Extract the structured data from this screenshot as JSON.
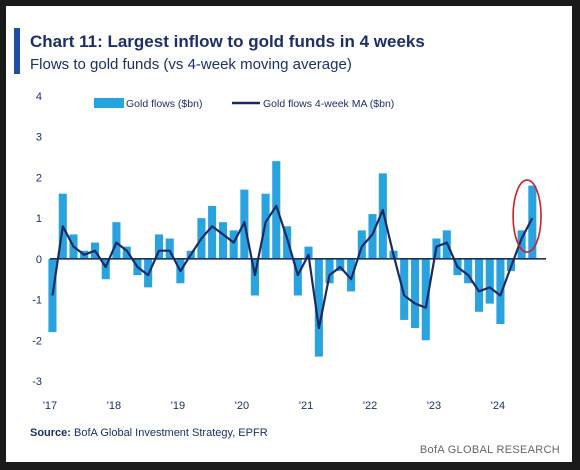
{
  "header": {
    "title": "Chart 11: Largest inflow to gold funds in 4 weeks",
    "subtitle": "Flows to gold funds (vs 4-week moving average)"
  },
  "footer": {
    "source_label": "Source:",
    "source_text": "BofA Global Investment Strategy, EPFR",
    "brand": "BofA GLOBAL RESEARCH"
  },
  "colors": {
    "bars": "#29a3e0",
    "ma_line": "#1b2a63",
    "zero_line": "#1c2f6b",
    "highlight": "#d11e2b",
    "text": "#1c2f6b"
  },
  "chart_data": {
    "type": "bar",
    "ylim": [
      -3,
      4
    ],
    "yticks": [
      "-3",
      "-2",
      "-1",
      "0",
      "1",
      "2",
      "3",
      "4"
    ],
    "xticks": [
      "'17",
      "'18",
      "'19",
      "'20",
      "'21",
      "'22",
      "'23",
      "'24"
    ],
    "legend": [
      "Gold flows ($bn)",
      "Gold flows 4-week MA ($bn)"
    ],
    "legend_position": "top",
    "grid": false,
    "highlight": {
      "shape": "ellipse",
      "region": "mid-2024",
      "label": ""
    },
    "series": [
      {
        "name": "Gold flows ($bn)",
        "type": "bar",
        "x": [
          "2017-01",
          "2017-03",
          "2017-05",
          "2017-07",
          "2017-09",
          "2017-11",
          "2018-01",
          "2018-03",
          "2018-05",
          "2018-07",
          "2018-09",
          "2018-11",
          "2019-01",
          "2019-03",
          "2019-05",
          "2019-07",
          "2019-09",
          "2019-11",
          "2020-01",
          "2020-03",
          "2020-05",
          "2020-07",
          "2020-09",
          "2020-11",
          "2021-01",
          "2021-03",
          "2021-05",
          "2021-07",
          "2021-09",
          "2021-11",
          "2022-01",
          "2022-03",
          "2022-05",
          "2022-07",
          "2022-09",
          "2022-11",
          "2023-01",
          "2023-03",
          "2023-05",
          "2023-07",
          "2023-09",
          "2023-11",
          "2024-01",
          "2024-03",
          "2024-05",
          "2024-07"
        ],
        "values": [
          -1.8,
          1.6,
          0.6,
          0.2,
          0.4,
          -0.5,
          0.9,
          0.3,
          -0.4,
          -0.7,
          0.6,
          0.5,
          -0.6,
          0.2,
          1.0,
          1.3,
          0.9,
          0.7,
          1.7,
          -0.9,
          1.6,
          2.4,
          0.8,
          -0.9,
          0.3,
          -2.4,
          -0.6,
          -0.3,
          -0.8,
          0.7,
          1.1,
          2.1,
          0.2,
          -1.5,
          -1.7,
          -2.0,
          0.5,
          0.7,
          -0.4,
          -0.6,
          -1.3,
          -1.1,
          -1.6,
          -0.3,
          0.7,
          1.8
        ]
      },
      {
        "name": "Gold flows 4-week MA ($bn)",
        "type": "line",
        "x": [
          "2017-01",
          "2017-03",
          "2017-05",
          "2017-07",
          "2017-09",
          "2017-11",
          "2018-01",
          "2018-03",
          "2018-05",
          "2018-07",
          "2018-09",
          "2018-11",
          "2019-01",
          "2019-03",
          "2019-05",
          "2019-07",
          "2019-09",
          "2019-11",
          "2020-01",
          "2020-03",
          "2020-05",
          "2020-07",
          "2020-09",
          "2020-11",
          "2021-01",
          "2021-03",
          "2021-05",
          "2021-07",
          "2021-09",
          "2021-11",
          "2022-01",
          "2022-03",
          "2022-05",
          "2022-07",
          "2022-09",
          "2022-11",
          "2023-01",
          "2023-03",
          "2023-05",
          "2023-07",
          "2023-09",
          "2023-11",
          "2024-01",
          "2024-03",
          "2024-05",
          "2024-07"
        ],
        "values": [
          -0.9,
          0.8,
          0.3,
          0.1,
          0.2,
          -0.2,
          0.4,
          0.2,
          -0.2,
          -0.4,
          0.2,
          0.2,
          -0.3,
          0.1,
          0.5,
          0.8,
          0.6,
          0.4,
          0.9,
          -0.4,
          0.9,
          1.3,
          0.5,
          -0.4,
          0.1,
          -1.7,
          -0.4,
          -0.2,
          -0.5,
          0.3,
          0.6,
          1.2,
          0.1,
          -0.9,
          -1.1,
          -1.2,
          0.3,
          0.4,
          -0.2,
          -0.4,
          -0.8,
          -0.7,
          -0.9,
          -0.2,
          0.5,
          1.0
        ]
      }
    ]
  }
}
